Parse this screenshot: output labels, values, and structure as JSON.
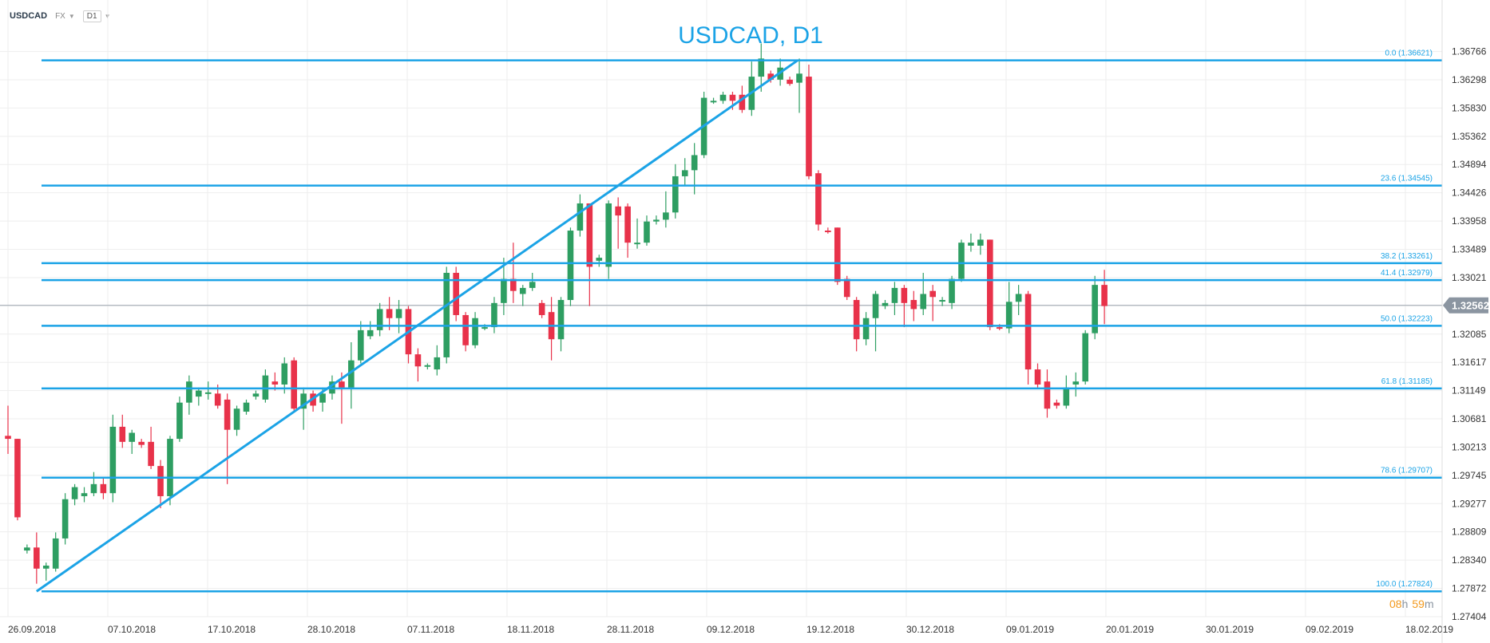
{
  "toolbar": {
    "symbol": "USDCAD",
    "market": "FX",
    "timeframe": "D1"
  },
  "colors": {
    "fib_line": "#1ba3e6",
    "up": "#2e9e62",
    "down": "#e8324a",
    "grid": "#eeeeee",
    "axis_text": "#333333",
    "current_price_badge": "#8b95a1",
    "countdown": "#f39a1e"
  },
  "chart_data": {
    "type": "candlestick",
    "title": "USDCAD, D1",
    "ylim": [
      1.27404,
      1.37025
    ],
    "y_ticks": [
      "1.36766",
      "1.36298",
      "1.35830",
      "1.35362",
      "1.34894",
      "1.34426",
      "1.33958",
      "1.33489",
      "1.33021",
      "1.32553",
      "1.32085",
      "1.31617",
      "1.31149",
      "1.30681",
      "1.30213",
      "1.29745",
      "1.29277",
      "1.28809",
      "1.28340",
      "1.27872",
      "1.27404"
    ],
    "x_tick_labels": [
      "26.09.2018",
      "07.10.2018",
      "17.10.2018",
      "28.10.2018",
      "07.11.2018",
      "18.11.2018",
      "28.11.2018",
      "09.12.2018",
      "19.12.2018",
      "30.12.2018",
      "09.01.2019",
      "20.01.2019",
      "30.01.2019",
      "09.02.2019",
      "18.02.2019"
    ],
    "current_price": "1.32562",
    "countdown": {
      "hours": "08",
      "h": "h",
      "minutes": "59",
      "m": "m"
    },
    "fib_levels": [
      {
        "label": "0.0 (1.36621)",
        "value": 1.36621
      },
      {
        "label": "23.6 (1.34545)",
        "value": 1.34545
      },
      {
        "label": "38.2 (1.33261)",
        "value": 1.33261
      },
      {
        "label": "41.4 (1.32979)",
        "value": 1.32979
      },
      {
        "label": "50.0 (1.32223)",
        "value": 1.32223
      },
      {
        "label": "61.8 (1.31185)",
        "value": 1.31185
      },
      {
        "label": "78.6 (1.29707)",
        "value": 1.29707
      },
      {
        "label": "100.0 (1.27824)",
        "value": 1.27824
      }
    ],
    "trendline": {
      "start": {
        "i": 3,
        "price": 1.27824
      },
      "end": {
        "i": 82,
        "price": 1.36621
      }
    },
    "candles": [
      {
        "o": 1.304,
        "h": 1.309,
        "l": 1.301,
        "c": 1.3035
      },
      {
        "o": 1.3035,
        "h": 1.3035,
        "l": 1.29,
        "c": 1.2905
      },
      {
        "o": 1.285,
        "h": 1.286,
        "l": 1.2845,
        "c": 1.2855
      },
      {
        "o": 1.2855,
        "h": 1.288,
        "l": 1.2795,
        "c": 1.282
      },
      {
        "o": 1.282,
        "h": 1.283,
        "l": 1.28,
        "c": 1.2825
      },
      {
        "o": 1.282,
        "h": 1.288,
        "l": 1.2815,
        "c": 1.287
      },
      {
        "o": 1.287,
        "h": 1.2945,
        "l": 1.286,
        "c": 1.2935
      },
      {
        "o": 1.2935,
        "h": 1.296,
        "l": 1.2925,
        "c": 1.2955
      },
      {
        "o": 1.294,
        "h": 1.2955,
        "l": 1.293,
        "c": 1.2945
      },
      {
        "o": 1.2945,
        "h": 1.298,
        "l": 1.294,
        "c": 1.296
      },
      {
        "o": 1.296,
        "h": 1.297,
        "l": 1.2935,
        "c": 1.2945
      },
      {
        "o": 1.2945,
        "h": 1.3075,
        "l": 1.293,
        "c": 1.3055
      },
      {
        "o": 1.3055,
        "h": 1.3075,
        "l": 1.302,
        "c": 1.303
      },
      {
        "o": 1.303,
        "h": 1.305,
        "l": 1.301,
        "c": 1.3045
      },
      {
        "o": 1.303,
        "h": 1.3035,
        "l": 1.302,
        "c": 1.3025
      },
      {
        "o": 1.303,
        "h": 1.3055,
        "l": 1.2985,
        "c": 1.299
      },
      {
        "o": 1.299,
        "h": 1.3,
        "l": 1.292,
        "c": 1.294
      },
      {
        "o": 1.294,
        "h": 1.304,
        "l": 1.2925,
        "c": 1.3035
      },
      {
        "o": 1.3035,
        "h": 1.3105,
        "l": 1.303,
        "c": 1.3095
      },
      {
        "o": 1.3095,
        "h": 1.314,
        "l": 1.3075,
        "c": 1.313
      },
      {
        "o": 1.3105,
        "h": 1.312,
        "l": 1.309,
        "c": 1.3115
      },
      {
        "o": 1.311,
        "h": 1.313,
        "l": 1.31,
        "c": 1.3112
      },
      {
        "o": 1.311,
        "h": 1.3125,
        "l": 1.3085,
        "c": 1.309
      },
      {
        "o": 1.31,
        "h": 1.311,
        "l": 1.296,
        "c": 1.305
      },
      {
        "o": 1.305,
        "h": 1.309,
        "l": 1.304,
        "c": 1.3085
      },
      {
        "o": 1.308,
        "h": 1.31,
        "l": 1.3075,
        "c": 1.3095
      },
      {
        "o": 1.3105,
        "h": 1.3115,
        "l": 1.31,
        "c": 1.311
      },
      {
        "o": 1.31,
        "h": 1.315,
        "l": 1.3095,
        "c": 1.314
      },
      {
        "o": 1.313,
        "h": 1.3145,
        "l": 1.3115,
        "c": 1.3125
      },
      {
        "o": 1.3125,
        "h": 1.317,
        "l": 1.311,
        "c": 1.316
      },
      {
        "o": 1.3165,
        "h": 1.317,
        "l": 1.308,
        "c": 1.3085
      },
      {
        "o": 1.3085,
        "h": 1.312,
        "l": 1.305,
        "c": 1.311
      },
      {
        "o": 1.311,
        "h": 1.3115,
        "l": 1.308,
        "c": 1.309
      },
      {
        "o": 1.3095,
        "h": 1.312,
        "l": 1.308,
        "c": 1.311
      },
      {
        "o": 1.311,
        "h": 1.314,
        "l": 1.31,
        "c": 1.313
      },
      {
        "o": 1.313,
        "h": 1.3145,
        "l": 1.306,
        "c": 1.312
      },
      {
        "o": 1.312,
        "h": 1.3195,
        "l": 1.3085,
        "c": 1.3165
      },
      {
        "o": 1.3165,
        "h": 1.323,
        "l": 1.316,
        "c": 1.3215
      },
      {
        "o": 1.3205,
        "h": 1.323,
        "l": 1.32,
        "c": 1.3215
      },
      {
        "o": 1.3215,
        "h": 1.326,
        "l": 1.3205,
        "c": 1.325
      },
      {
        "o": 1.325,
        "h": 1.327,
        "l": 1.3215,
        "c": 1.3235
      },
      {
        "o": 1.3235,
        "h": 1.3265,
        "l": 1.321,
        "c": 1.325
      },
      {
        "o": 1.325,
        "h": 1.3255,
        "l": 1.316,
        "c": 1.3175
      },
      {
        "o": 1.3175,
        "h": 1.3185,
        "l": 1.313,
        "c": 1.3155
      },
      {
        "o": 1.3155,
        "h": 1.316,
        "l": 1.315,
        "c": 1.3157
      },
      {
        "o": 1.315,
        "h": 1.319,
        "l": 1.314,
        "c": 1.317
      },
      {
        "o": 1.317,
        "h": 1.332,
        "l": 1.316,
        "c": 1.331
      },
      {
        "o": 1.331,
        "h": 1.332,
        "l": 1.323,
        "c": 1.324
      },
      {
        "o": 1.324,
        "h": 1.3245,
        "l": 1.318,
        "c": 1.319
      },
      {
        "o": 1.319,
        "h": 1.3245,
        "l": 1.3185,
        "c": 1.3235
      },
      {
        "o": 1.322,
        "h": 1.3225,
        "l": 1.3215,
        "c": 1.322
      },
      {
        "o": 1.322,
        "h": 1.327,
        "l": 1.321,
        "c": 1.326
      },
      {
        "o": 1.326,
        "h": 1.3335,
        "l": 1.324,
        "c": 1.33
      },
      {
        "o": 1.33,
        "h": 1.336,
        "l": 1.326,
        "c": 1.328
      },
      {
        "o": 1.3275,
        "h": 1.329,
        "l": 1.3255,
        "c": 1.3285
      },
      {
        "o": 1.3285,
        "h": 1.331,
        "l": 1.328,
        "c": 1.3295
      },
      {
        "o": 1.326,
        "h": 1.3265,
        "l": 1.3235,
        "c": 1.324
      },
      {
        "o": 1.3245,
        "h": 1.327,
        "l": 1.3165,
        "c": 1.32
      },
      {
        "o": 1.32,
        "h": 1.327,
        "l": 1.318,
        "c": 1.3265
      },
      {
        "o": 1.3265,
        "h": 1.3385,
        "l": 1.3255,
        "c": 1.338
      },
      {
        "o": 1.338,
        "h": 1.344,
        "l": 1.337,
        "c": 1.3425
      },
      {
        "o": 1.3425,
        "h": 1.3425,
        "l": 1.3255,
        "c": 1.332
      },
      {
        "o": 1.333,
        "h": 1.334,
        "l": 1.332,
        "c": 1.3335
      },
      {
        "o": 1.332,
        "h": 1.343,
        "l": 1.33,
        "c": 1.3425
      },
      {
        "o": 1.342,
        "h": 1.3435,
        "l": 1.335,
        "c": 1.3405
      },
      {
        "o": 1.342,
        "h": 1.3425,
        "l": 1.3335,
        "c": 1.336
      },
      {
        "o": 1.336,
        "h": 1.34,
        "l": 1.335,
        "c": 1.336
      },
      {
        "o": 1.336,
        "h": 1.3405,
        "l": 1.3355,
        "c": 1.3395
      },
      {
        "o": 1.3395,
        "h": 1.3405,
        "l": 1.339,
        "c": 1.3398
      },
      {
        "o": 1.3398,
        "h": 1.3445,
        "l": 1.3385,
        "c": 1.341
      },
      {
        "o": 1.341,
        "h": 1.349,
        "l": 1.34,
        "c": 1.347
      },
      {
        "o": 1.347,
        "h": 1.35,
        "l": 1.3455,
        "c": 1.348
      },
      {
        "o": 1.348,
        "h": 1.3525,
        "l": 1.344,
        "c": 1.3505
      },
      {
        "o": 1.3505,
        "h": 1.361,
        "l": 1.35,
        "c": 1.36
      },
      {
        "o": 1.3593,
        "h": 1.36,
        "l": 1.359,
        "c": 1.3595
      },
      {
        "o": 1.3595,
        "h": 1.361,
        "l": 1.359,
        "c": 1.3605
      },
      {
        "o": 1.3605,
        "h": 1.361,
        "l": 1.358,
        "c": 1.3595
      },
      {
        "o": 1.3605,
        "h": 1.362,
        "l": 1.3575,
        "c": 1.358
      },
      {
        "o": 1.358,
        "h": 1.366,
        "l": 1.357,
        "c": 1.3635
      },
      {
        "o": 1.3635,
        "h": 1.369,
        "l": 1.361,
        "c": 1.3665
      },
      {
        "o": 1.364,
        "h": 1.3645,
        "l": 1.3625,
        "c": 1.363
      },
      {
        "o": 1.363,
        "h": 1.3665,
        "l": 1.362,
        "c": 1.365
      },
      {
        "o": 1.363,
        "h": 1.3635,
        "l": 1.362,
        "c": 1.3623
      },
      {
        "o": 1.3625,
        "h": 1.3665,
        "l": 1.3575,
        "c": 1.364
      },
      {
        "o": 1.3635,
        "h": 1.3655,
        "l": 1.3465,
        "c": 1.347
      },
      {
        "o": 1.3475,
        "h": 1.348,
        "l": 1.338,
        "c": 1.339
      },
      {
        "o": 1.338,
        "h": 1.3385,
        "l": 1.3375,
        "c": 1.3378
      },
      {
        "o": 1.3385,
        "h": 1.3385,
        "l": 1.329,
        "c": 1.3295
      },
      {
        "o": 1.33,
        "h": 1.3305,
        "l": 1.3265,
        "c": 1.327
      },
      {
        "o": 1.3265,
        "h": 1.327,
        "l": 1.318,
        "c": 1.32
      },
      {
        "o": 1.32,
        "h": 1.3245,
        "l": 1.319,
        "c": 1.3235
      },
      {
        "o": 1.3235,
        "h": 1.328,
        "l": 1.318,
        "c": 1.3275
      },
      {
        "o": 1.3255,
        "h": 1.3265,
        "l": 1.325,
        "c": 1.326
      },
      {
        "o": 1.326,
        "h": 1.3295,
        "l": 1.324,
        "c": 1.3285
      },
      {
        "o": 1.3285,
        "h": 1.329,
        "l": 1.322,
        "c": 1.326
      },
      {
        "o": 1.3265,
        "h": 1.328,
        "l": 1.323,
        "c": 1.325
      },
      {
        "o": 1.325,
        "h": 1.331,
        "l": 1.324,
        "c": 1.3275
      },
      {
        "o": 1.328,
        "h": 1.329,
        "l": 1.323,
        "c": 1.327
      },
      {
        "o": 1.3265,
        "h": 1.327,
        "l": 1.3255,
        "c": 1.3265
      },
      {
        "o": 1.326,
        "h": 1.3305,
        "l": 1.325,
        "c": 1.33
      },
      {
        "o": 1.33,
        "h": 1.3365,
        "l": 1.3295,
        "c": 1.336
      },
      {
        "o": 1.3355,
        "h": 1.3375,
        "l": 1.3345,
        "c": 1.336
      },
      {
        "o": 1.3355,
        "h": 1.3375,
        "l": 1.334,
        "c": 1.3365
      },
      {
        "o": 1.3365,
        "h": 1.3365,
        "l": 1.3215,
        "c": 1.322
      },
      {
        "o": 1.322,
        "h": 1.3225,
        "l": 1.3215,
        "c": 1.3218
      },
      {
        "o": 1.3218,
        "h": 1.3295,
        "l": 1.321,
        "c": 1.3262
      },
      {
        "o": 1.3262,
        "h": 1.329,
        "l": 1.324,
        "c": 1.3275
      },
      {
        "o": 1.3275,
        "h": 1.328,
        "l": 1.3125,
        "c": 1.315
      },
      {
        "o": 1.315,
        "h": 1.316,
        "l": 1.312,
        "c": 1.3125
      },
      {
        "o": 1.313,
        "h": 1.315,
        "l": 1.307,
        "c": 1.3085
      },
      {
        "o": 1.3095,
        "h": 1.31,
        "l": 1.3085,
        "c": 1.309
      },
      {
        "o": 1.309,
        "h": 1.314,
        "l": 1.3085,
        "c": 1.312
      },
      {
        "o": 1.3125,
        "h": 1.3145,
        "l": 1.3105,
        "c": 1.313
      },
      {
        "o": 1.313,
        "h": 1.3215,
        "l": 1.3125,
        "c": 1.321
      },
      {
        "o": 1.321,
        "h": 1.3305,
        "l": 1.32,
        "c": 1.329
      },
      {
        "o": 1.329,
        "h": 1.3315,
        "l": 1.3225,
        "c": 1.3255
      }
    ]
  }
}
